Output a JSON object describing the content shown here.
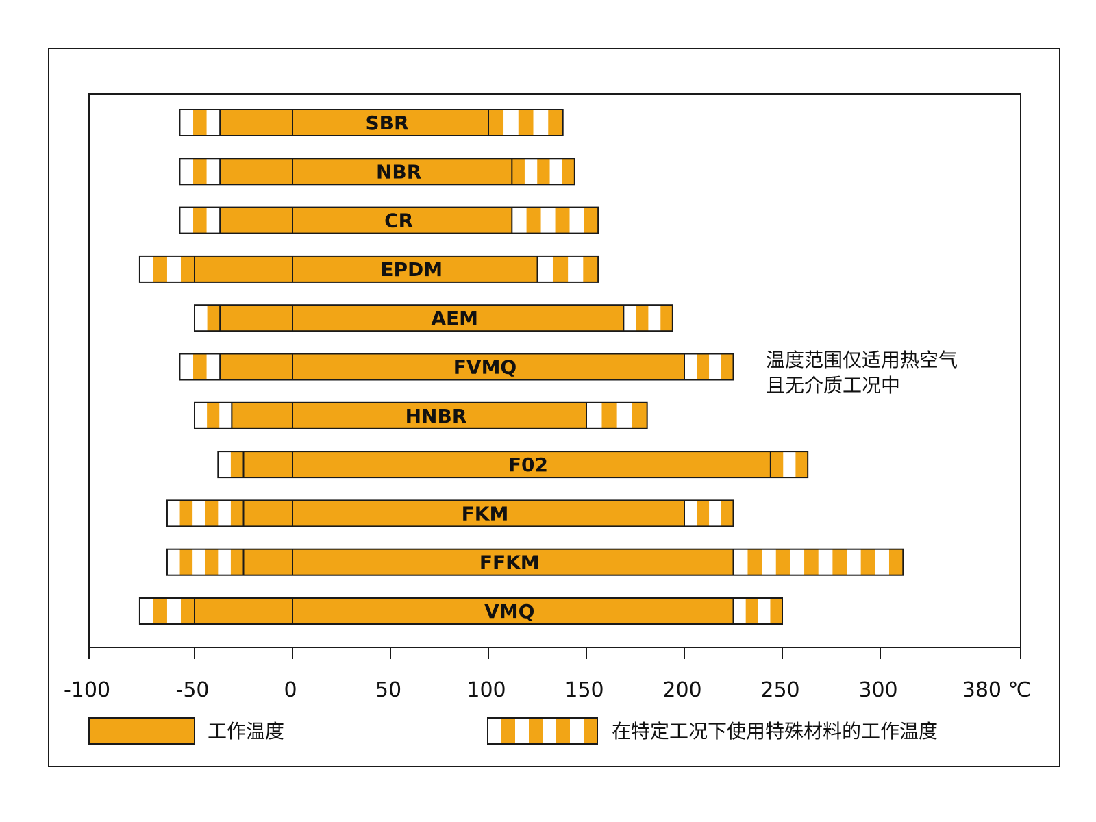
{
  "chart_data": {
    "type": "range-bar",
    "unit": "℃",
    "x_ticks": [
      -100,
      -50,
      0,
      50,
      100,
      150,
      200,
      250,
      300,
      380
    ],
    "x_tick_labels": [
      "-100",
      "-50",
      "0",
      "50",
      "100",
      "150",
      "200",
      "250",
      "300",
      "380 ℃"
    ],
    "xlim": [
      -100,
      380
    ],
    "materials": [
      {
        "name": "SBR",
        "special_low": -57,
        "work_low": -37,
        "work_high": 100,
        "special_high": 138
      },
      {
        "name": "NBR",
        "special_low": -57,
        "work_low": -37,
        "work_high": 112,
        "special_high": 144
      },
      {
        "name": "CR",
        "special_low": -57,
        "work_low": -37,
        "work_high": 112,
        "special_high": 156
      },
      {
        "name": "EPDM",
        "special_low": -76,
        "work_low": -50,
        "work_high": 125,
        "special_high": 156
      },
      {
        "name": "AEM",
        "special_low": -50,
        "work_low": -37,
        "work_high": 169,
        "special_high": 194
      },
      {
        "name": "FVMQ",
        "special_low": -57,
        "work_low": -37,
        "work_high": 200,
        "special_high": 225
      },
      {
        "name": "HNBR",
        "special_low": -50,
        "work_low": -31,
        "work_high": 150,
        "special_high": 181
      },
      {
        "name": "F02",
        "special_low": -38,
        "work_low": -25,
        "work_high": 244,
        "special_high": 263
      },
      {
        "name": "FKM",
        "special_low": -63,
        "work_low": -25,
        "work_high": 200,
        "special_high": 225
      },
      {
        "name": "FFKM",
        "special_low": -63,
        "work_low": -25,
        "work_high": 225,
        "special_high": 313
      },
      {
        "name": "VMQ",
        "special_low": -76,
        "work_low": -50,
        "work_high": 225,
        "special_high": 250
      }
    ],
    "note_lines": [
      "温度范围仅适用热空气",
      "且无介质工况中"
    ],
    "legend": [
      {
        "key": "working",
        "label": "工作温度"
      },
      {
        "key": "special",
        "label": "在特定工况下使用特殊材料的工作温度"
      }
    ],
    "colors": {
      "bar": "#F2A516",
      "stripe": "#FFFFFF",
      "stroke": "#1a1a1a"
    }
  }
}
